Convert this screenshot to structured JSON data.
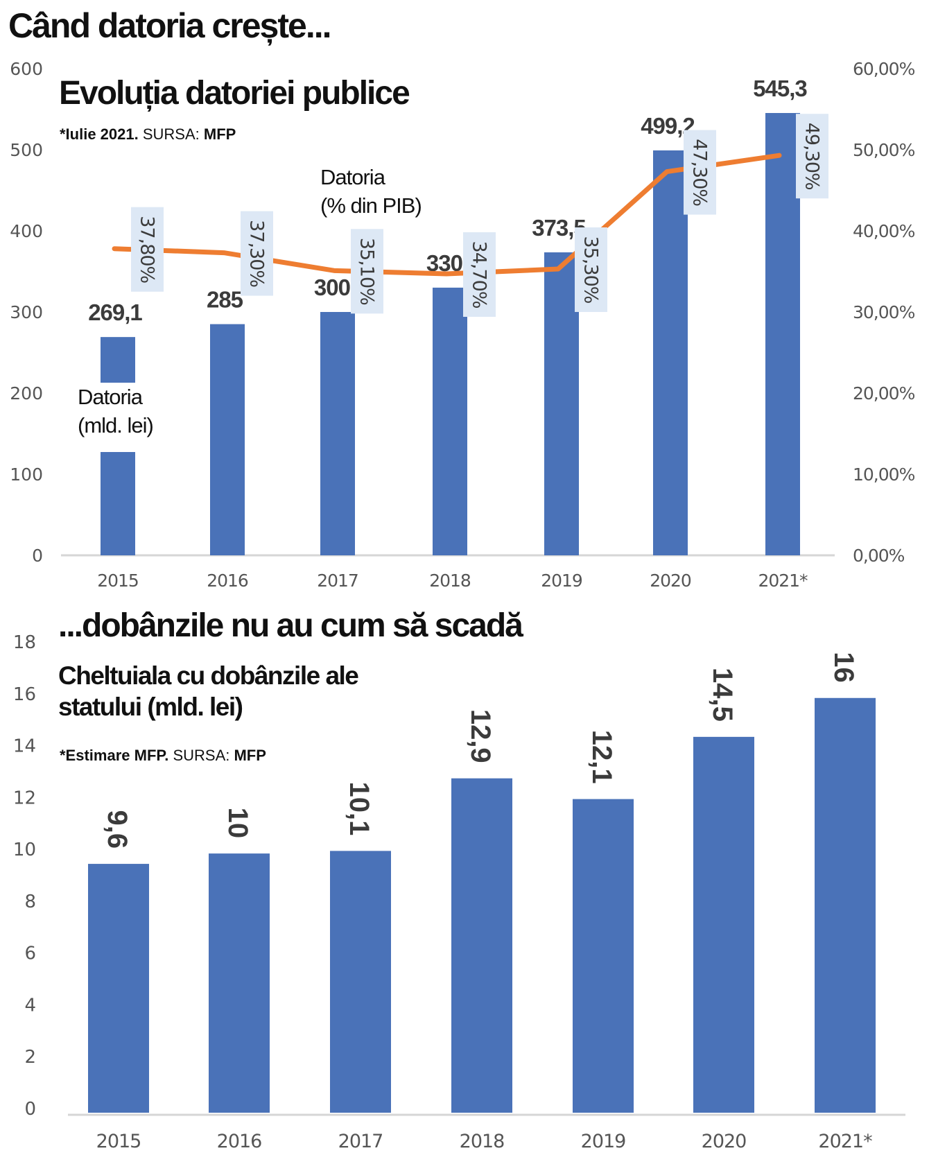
{
  "page": {
    "main_title": "Când datoria crește...",
    "second_title": "...dobânzile nu au cum să scadă"
  },
  "colors": {
    "bar": "#4a72b8",
    "line": "#ee7d31",
    "pct_box": "#dde8f5",
    "axis_line": "#d6d6d6",
    "label_text": "#3b3b3b"
  },
  "chart_data": [
    {
      "type": "bar+line",
      "title": "Evoluția datoriei publice",
      "subtitle_bold": "*Iulie 2021.",
      "subtitle_regular": " SURSA: ",
      "subtitle_source": "MFP",
      "categories": [
        "2015",
        "2016",
        "2017",
        "2018",
        "2019",
        "2020",
        "2021*"
      ],
      "series": [
        {
          "name": "Datoria (mld. lei)",
          "name_lines": [
            "Datoria",
            "(mld. lei)"
          ],
          "axis": "left",
          "kind": "bar",
          "values": [
            269.1,
            285,
            300,
            330,
            373.5,
            499.2,
            545.3
          ],
          "data_labels": [
            "269,1",
            "285",
            "300,",
            "330,",
            "373,5",
            "499,2",
            "545,3"
          ]
        },
        {
          "name": "Datoria (% din PIB)",
          "name_lines": [
            "Datoria",
            "(% din PIB)"
          ],
          "axis": "right",
          "kind": "line",
          "values": [
            37.8,
            37.3,
            35.1,
            34.7,
            35.3,
            47.3,
            49.3
          ],
          "data_labels": [
            "37,80%",
            "37,30%",
            "35,10%",
            "34,70%",
            "35,30%",
            "47,30%",
            "49,30%"
          ]
        }
      ],
      "ylim_left": [
        0,
        600
      ],
      "yticks_left": [
        "0",
        "100",
        "200",
        "300",
        "400",
        "500",
        "600"
      ],
      "ylim_right": [
        0,
        60
      ],
      "yticks_right": [
        "0,00%",
        "10,00%",
        "20,00%",
        "30,00%",
        "40,00%",
        "50,00%",
        "60,00%"
      ],
      "grid": false
    },
    {
      "type": "bar",
      "title_lines": [
        "Cheltuiala cu dobânzile ale",
        "statului (mld. lei)"
      ],
      "subtitle_bold": "*Estimare MFP.",
      "subtitle_regular": " SURSA: ",
      "subtitle_source": "MFP",
      "categories": [
        "2015",
        "2016",
        "2017",
        "2018",
        "2019",
        "2020",
        "2021*"
      ],
      "values": [
        9.6,
        10,
        10.1,
        12.9,
        12.1,
        14.5,
        16
      ],
      "data_labels": [
        "9,6",
        "10",
        "10,1",
        "12,9",
        "12,1",
        "14,5",
        "16"
      ],
      "ylim": [
        0,
        18
      ],
      "yticks": [
        "0",
        "2",
        "4",
        "6",
        "8",
        "10",
        "12",
        "14",
        "16",
        "18"
      ],
      "grid": false
    }
  ]
}
